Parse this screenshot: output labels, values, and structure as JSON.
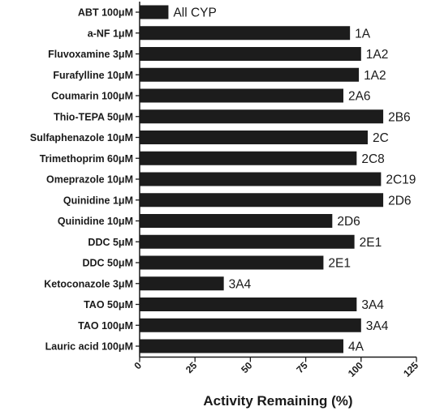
{
  "chart_data": {
    "type": "bar",
    "orientation": "horizontal",
    "categories": [
      "ABT 100μM",
      "a-NF 1μM",
      "Fluvoxamine 3μM",
      "Furafylline 10μM",
      "Coumarin 100μM",
      "Thio-TEPA 50μM",
      "Sulfaphenazole 10μM",
      "Trimethoprim 60μM",
      "Omeprazole 10μM",
      "Quinidine 1μM",
      "Quinidine 10μM",
      "DDC 5μM",
      "DDC 50μM",
      "Ketoconazole 3μM",
      "TAO 50μM",
      "TAO 100μM",
      "Lauric acid 100μM"
    ],
    "values": [
      13,
      95,
      100,
      99,
      92,
      110,
      103,
      98,
      109,
      110,
      87,
      97,
      83,
      38,
      98,
      100,
      92
    ],
    "bar_labels": [
      "All CYP",
      "1A",
      "1A2",
      "1A2",
      "2A6",
      "2B6",
      "2C",
      "2C8",
      "2C19",
      "2D6",
      "2D6",
      "2E1",
      "2E1",
      "3A4",
      "3A4",
      "3A4",
      "4A"
    ],
    "xlabel": "Activity Remaining (%)",
    "ylabel": "",
    "xlim": [
      0,
      125
    ],
    "xticks": [
      0,
      25,
      50,
      75,
      100,
      125
    ],
    "bar_color": "#1c1c1c",
    "grid": false
  }
}
